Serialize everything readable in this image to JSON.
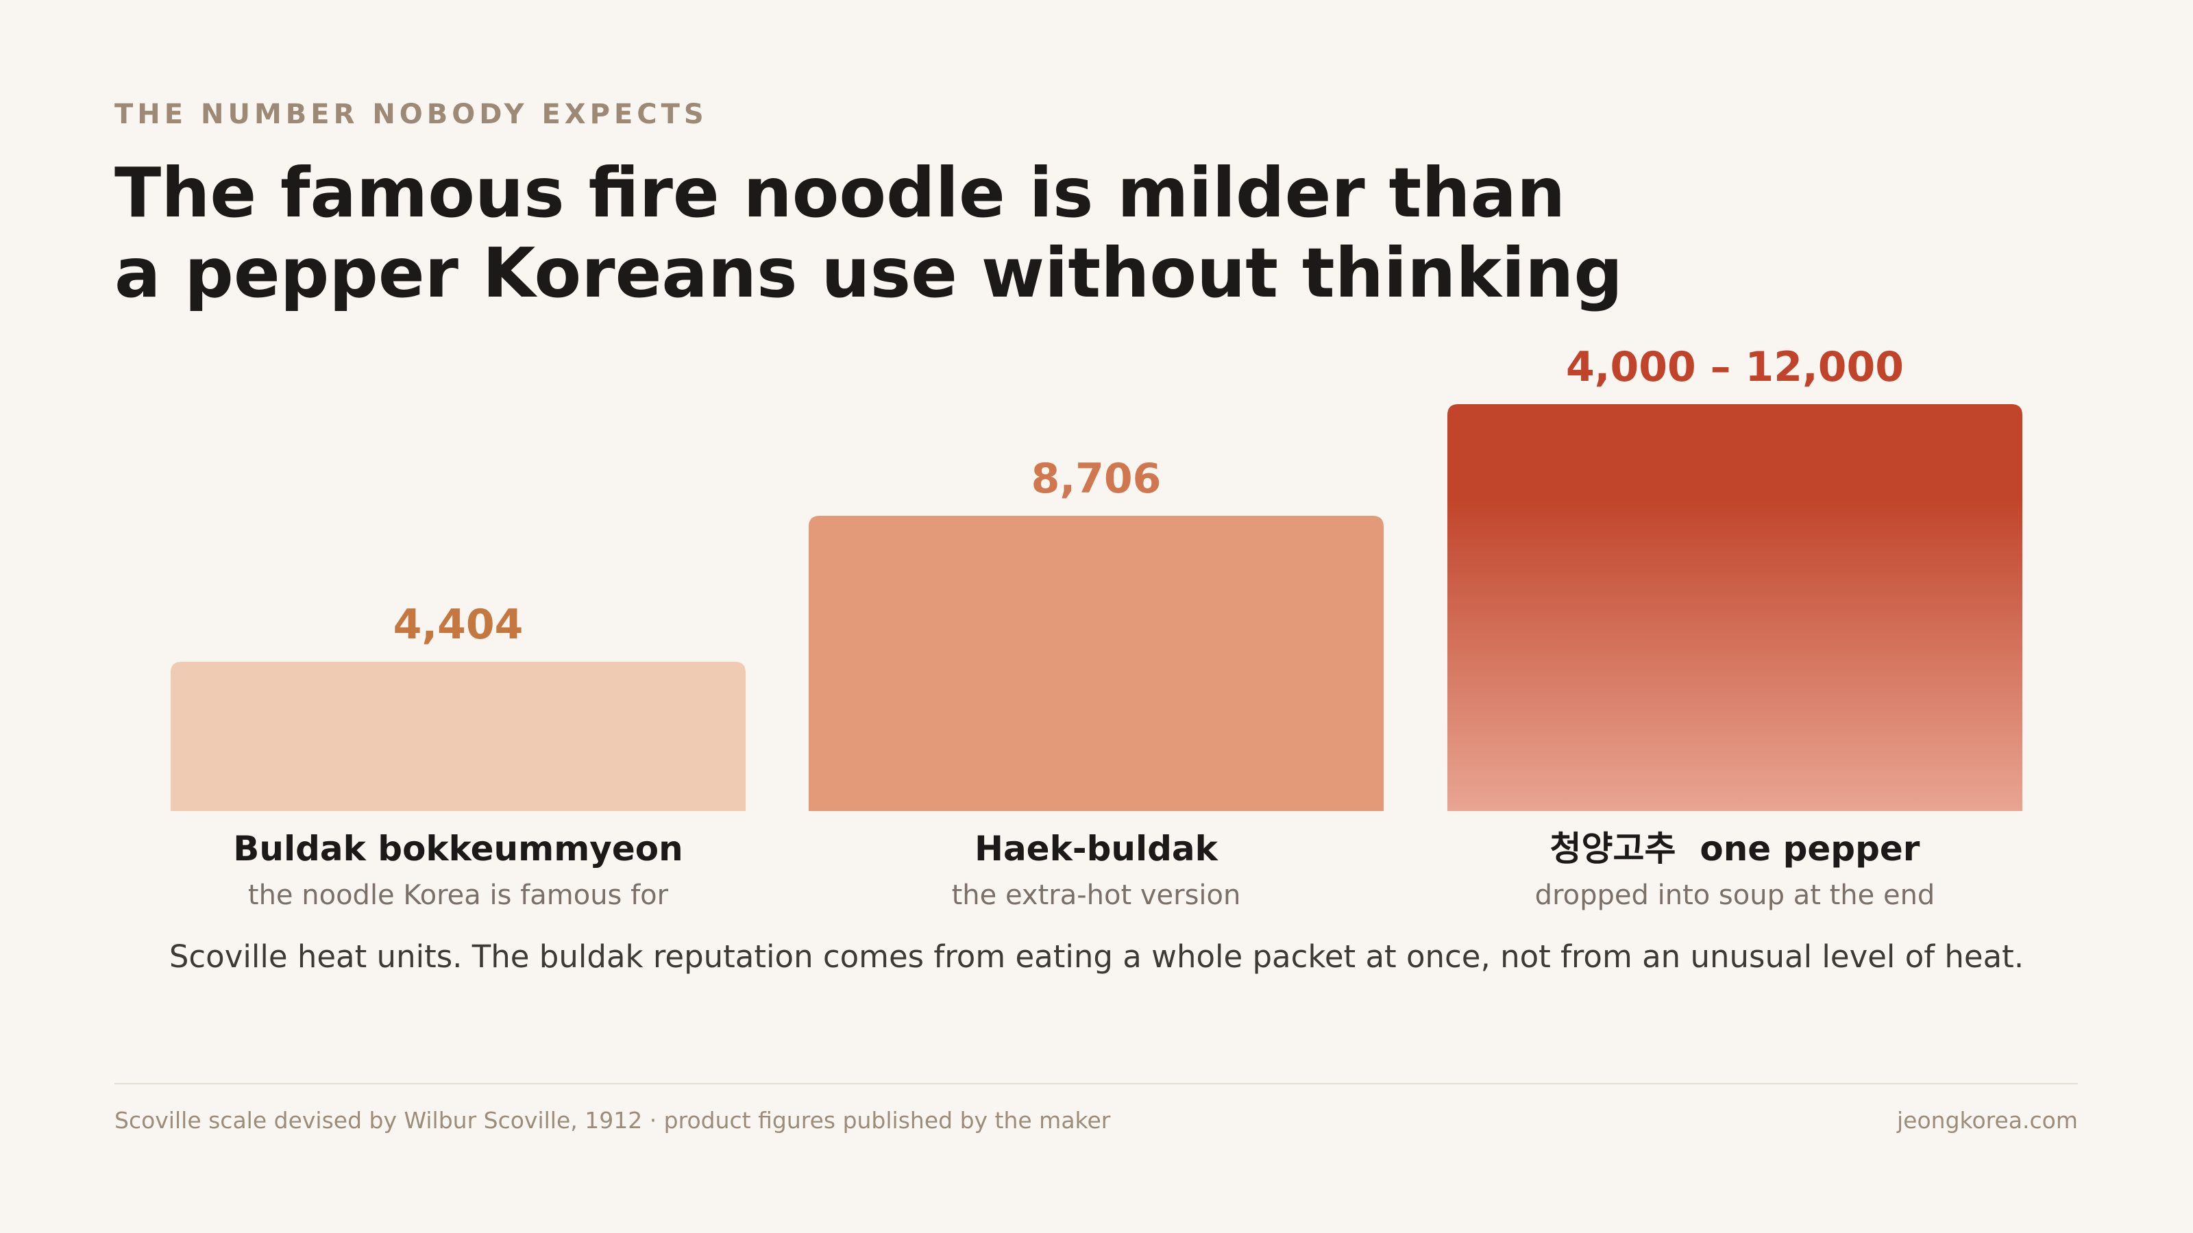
{
  "kicker": "THE NUMBER NOBODY EXPECTS",
  "chart_data": {
    "type": "bar",
    "title": "The famous fire noodle is milder than\na pepper Koreans use without thinking",
    "categories": [
      "Buldak bokkeummyeon",
      "Haek-buldak",
      "청양고추  one pepper"
    ],
    "descriptions": [
      "the noodle Korea is famous for",
      "the extra-hot version",
      "dropped into soup at the end"
    ],
    "values": [
      4404,
      8706,
      12000
    ],
    "range_low": [
      null,
      null,
      4000
    ],
    "value_labels": [
      "4,404",
      "8,706",
      "4,000 – 12,000"
    ],
    "colors": [
      "#efcbb4",
      "#e29a78",
      "#c1452b"
    ],
    "range_fade_color": "#e8a592",
    "label_colors": [
      "#c4773f",
      "#d0774f",
      "#c0432a"
    ],
    "ylim": [
      0,
      12000
    ],
    "note": "Scoville heat units. The buldak reputation comes from eating a whole packet at once, not from an unusual level of heat."
  },
  "footer": {
    "source": "Scoville scale devised by Wilbur Scoville, 1912 · product figures published by the maker",
    "site": "jeongkorea.com"
  }
}
